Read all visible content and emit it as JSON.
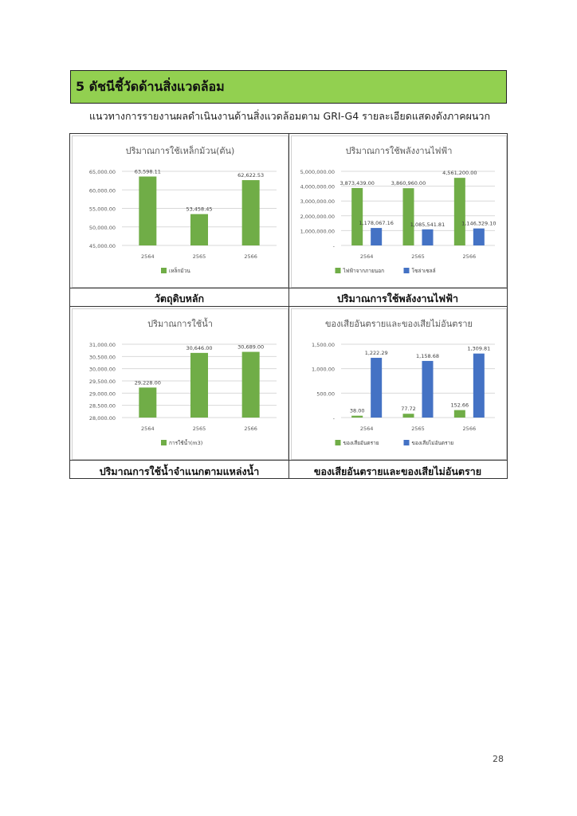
{
  "header": {
    "title": "5 ดัชนีชี้วัดด้านสิ่งแวดล้อม"
  },
  "intro": "แนวทางการรายงานผลดำเนินงานด้านสิ่งแวดล้อมตาม GRI-G4 รายละเอียดแสดงดังภาคผนวก",
  "captions": {
    "c1": "วัตถุดิบหลัก",
    "c2": "ปริมาณการใช้พลังงานไฟฟ้า",
    "c3": "ปริมาณการใช้น้ำจำแนกตามแหล่งน้ำ",
    "c4": "ของเสียอันตรายและของเสียไม่อันตราย"
  },
  "page_number": "28",
  "colors": {
    "green": "#70ad47",
    "blue": "#4472c4",
    "header_bg": "#92d050"
  },
  "chart_data": [
    {
      "type": "bar",
      "title": "ปริมาณการใช้เหล็กม้วน(ตัน)",
      "categories": [
        "2564",
        "2565",
        "2566"
      ],
      "series": [
        {
          "name": "เหล็กม้วน",
          "values": [
            63598.11,
            53458.45,
            62622.53
          ],
          "labels": [
            "63,598.11",
            "53,458.45",
            "62,622.53"
          ],
          "color": "#70ad47"
        }
      ],
      "ylim": [
        45000,
        65000
      ],
      "yticks": [
        "45,000.00",
        "50,000.00",
        "55,000.00",
        "60,000.00",
        "65,000.00"
      ],
      "grid": true,
      "legend": "bottom"
    },
    {
      "type": "bar",
      "title": "ปริมาณการใช้พลังงานไฟฟ้า",
      "categories": [
        "2564",
        "2565",
        "2566"
      ],
      "series": [
        {
          "name": "ไฟฟ้าจากภายนอก",
          "values": [
            3873439.0,
            3860960.0,
            4561200.0
          ],
          "labels": [
            "3,873,439.00",
            "3,860,960.00",
            "4,561,200.00"
          ],
          "color": "#70ad47"
        },
        {
          "name": "โซล่าเซลล์",
          "values": [
            1178067.16,
            1085541.81,
            1146329.1
          ],
          "labels": [
            "1,178,067.16",
            "1,085,541.81",
            "1,146,329.10"
          ],
          "color": "#4472c4"
        }
      ],
      "ylim": [
        0,
        5000000
      ],
      "yticks": [
        "-",
        "1,000,000.00",
        "2,000,000.00",
        "3,000,000.00",
        "4,000,000.00",
        "5,000,000.00"
      ],
      "grid": true,
      "legend": "bottom"
    },
    {
      "type": "bar",
      "title": "ปริมาณการใช้น้ำ",
      "categories": [
        "2564",
        "2565",
        "2566"
      ],
      "series": [
        {
          "name": "การใช้น้ำ(m3)",
          "values": [
            29228.0,
            30646.0,
            30689.0
          ],
          "labels": [
            "29,228.00",
            "30,646.00",
            "30,689.00"
          ],
          "color": "#70ad47"
        }
      ],
      "ylim": [
        28000,
        31000
      ],
      "yticks": [
        "28,000.00",
        "28,500.00",
        "29,000.00",
        "29,500.00",
        "30,000.00",
        "30,500.00",
        "31,000.00"
      ],
      "grid": true,
      "legend": "bottom"
    },
    {
      "type": "bar",
      "title": "ของเสียอันตรายและของเสียไม่อันตราย",
      "categories": [
        "2564",
        "2565",
        "2566"
      ],
      "series": [
        {
          "name": "ของเสียอันตราย",
          "values": [
            38.0,
            77.72,
            152.66
          ],
          "labels": [
            "38.00",
            "77.72",
            "152.66"
          ],
          "color": "#70ad47"
        },
        {
          "name": "ของเสียไม่อันตราย",
          "values": [
            1222.29,
            1158.68,
            1309.81
          ],
          "labels": [
            "1,222.29",
            "1,158.68",
            "1,309.81"
          ],
          "color": "#4472c4"
        }
      ],
      "ylim": [
        0,
        1500
      ],
      "yticks": [
        "-",
        "500.00",
        "1,000.00",
        "1,500.00"
      ],
      "grid": true,
      "legend": "bottom"
    }
  ]
}
